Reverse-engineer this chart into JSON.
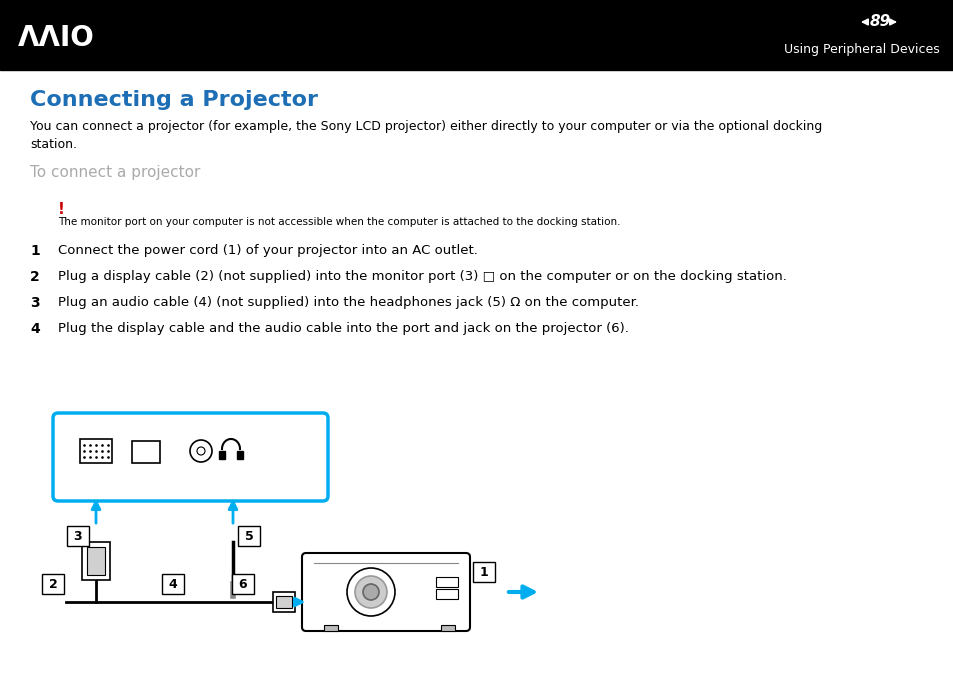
{
  "bg_color": "#ffffff",
  "header_bg": "#000000",
  "page_number": "89",
  "header_right_text": "Using Peripheral Devices",
  "title": "Connecting a Projector",
  "title_color": "#1e6eb5",
  "body_text": "You can connect a projector (for example, the Sony LCD projector) either directly to your computer or via the optional docking\nstation.",
  "subheading": "To connect a projector",
  "subheading_color": "#aaaaaa",
  "warning_mark": "!",
  "warning_color": "#cc0000",
  "warning_text": "The monitor port on your computer is not accessible when the computer is attached to the docking station.",
  "steps": [
    "Connect the power cord (1) of your projector into an AC outlet.",
    "Plug a display cable (2) (not supplied) into the monitor port (3) □ on the computer or on the docking station.",
    "Plug an audio cable (4) (not supplied) into the headphones jack (5) Ω on the computer.",
    "Plug the display cable and the audio cable into the port and jack on the projector (6)."
  ],
  "cyan_color": "#00aeef"
}
